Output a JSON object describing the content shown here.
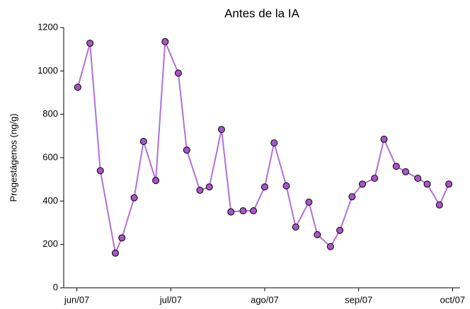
{
  "chart_data": {
    "type": "line",
    "title": "Antes de la IA",
    "y_label": "Progestágenos (ng/g)",
    "x": [
      6.01,
      6.14,
      6.25,
      6.41,
      6.48,
      6.61,
      6.71,
      6.84,
      6.94,
      7.08,
      7.17,
      7.31,
      7.41,
      7.54,
      7.64,
      7.77,
      7.88,
      8.0,
      8.1,
      8.23,
      8.33,
      8.47,
      8.56,
      8.7,
      8.8,
      8.93,
      9.04,
      9.17,
      9.27,
      9.4,
      9.5,
      9.63,
      9.73,
      9.86,
      9.96
    ],
    "series": [
      {
        "name": "Progestágenos",
        "color": "#b070d8",
        "marker_color": "#a855c8",
        "values": [
          925,
          1128,
          540,
          160,
          230,
          415,
          675,
          495,
          1135,
          990,
          635,
          450,
          465,
          730,
          350,
          355,
          355,
          465,
          668,
          470,
          280,
          395,
          245,
          190,
          265,
          420,
          478,
          505,
          685,
          560,
          535,
          505,
          478,
          382,
          478
        ]
      }
    ],
    "xlim": [
      5.86,
      10.08
    ],
    "xticks": [
      {
        "value": 6,
        "label": "jun/07"
      },
      {
        "value": 7,
        "label": "jul/07"
      },
      {
        "value": 8,
        "label": "ago/07"
      },
      {
        "value": 9,
        "label": "sep/07"
      },
      {
        "value": 10,
        "label": "oct/07"
      }
    ],
    "ylim": [
      0,
      1200
    ],
    "yticks": [
      0,
      200,
      400,
      600,
      800,
      1000,
      1200
    ],
    "grid": false,
    "legend": false
  }
}
